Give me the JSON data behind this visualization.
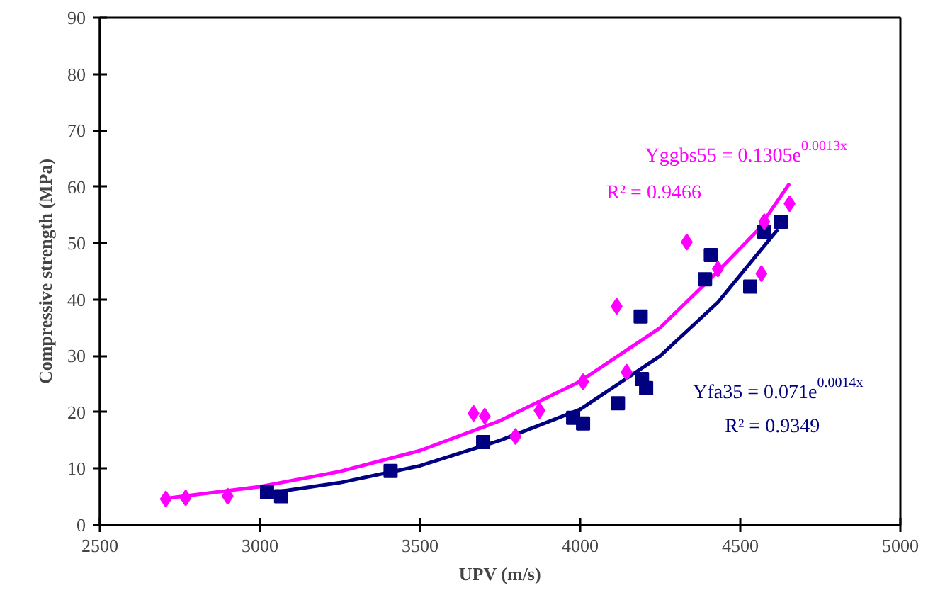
{
  "chart_data": {
    "type": "scatter",
    "xlabel": "UPV (m/s)",
    "ylabel": "Compressive strength (MPa)",
    "xlim": [
      2500,
      5000
    ],
    "ylim": [
      0,
      90
    ],
    "xticks": [
      2500,
      3000,
      3500,
      4000,
      4500,
      5000
    ],
    "yticks": [
      0,
      10,
      20,
      30,
      40,
      50,
      60,
      70,
      80,
      90
    ],
    "grid": false,
    "series": [
      {
        "marker": "diamond",
        "color": "#ff00ff",
        "x": [
          2706,
          2768,
          2899,
          3667,
          3702,
          3798,
          3873,
          4009,
          4114,
          4145,
          4333,
          4430,
          4566,
          4575,
          4654
        ],
        "values": [
          4.6,
          4.8,
          5.1,
          19.8,
          19.3,
          15.7,
          20.3,
          25.4,
          38.8,
          27.1,
          50.2,
          45.4,
          44.6,
          53.8,
          57.0
        ]
      },
      {
        "marker": "square",
        "color": "#000080",
        "x": [
          3022,
          3066,
          3408,
          3697,
          3978,
          4009,
          4118,
          4189,
          4193,
          4206,
          4390,
          4408,
          4531,
          4575,
          4627
        ],
        "values": [
          5.8,
          5.1,
          9.6,
          14.7,
          19.0,
          18.0,
          21.6,
          37.0,
          25.9,
          24.3,
          43.6,
          47.9,
          42.3,
          52.0,
          53.8
        ]
      },
      {
        "type": "line",
        "color": "#ff00ff",
        "x": [
          2705,
          3000,
          3250,
          3500,
          3750,
          4000,
          4250,
          4430,
          4550,
          4654
        ],
        "values": [
          4.7,
          6.8,
          9.5,
          13.2,
          18.5,
          25.5,
          35.0,
          45.0,
          52.0,
          60.6
        ]
      },
      {
        "type": "line",
        "color": "#000080",
        "x": [
          3020,
          3250,
          3500,
          3750,
          4000,
          4250,
          4430,
          4618
        ],
        "values": [
          5.6,
          7.5,
          10.5,
          15.0,
          20.5,
          30.0,
          39.5,
          52.5
        ]
      }
    ],
    "annotations": [
      "Yggbs55 = 0.1305e$^{0.0013x}$",
      "R² = 0.9466",
      "Yfa35 = 0.071e$^{0.0014x}$",
      "R² = 0.9349"
    ]
  }
}
